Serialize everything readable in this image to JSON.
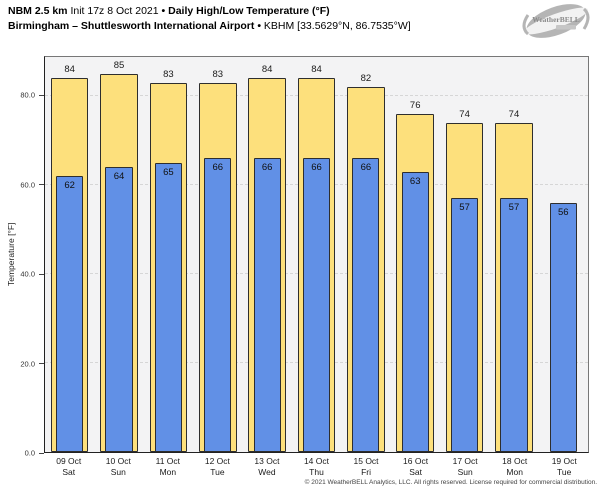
{
  "header": {
    "model": "NBM 2.5 km",
    "init": "Init 17z 8 Oct 2021",
    "sep": "•",
    "product": "Daily High/Low Temperature (°F)",
    "station_name": "Birmingham – Shuttlesworth International Airport",
    "station_id": "KBHM [33.5629°N, 86.7535°W]"
  },
  "logo": {
    "text": "WeatherBELL"
  },
  "footer": {
    "copyright": "© 2021 WeatherBELL Analytics, LLC. All rights reserved. License required for commercial distribution."
  },
  "colors": {
    "high_bar": "#fde07c",
    "low_bar": "#6190e6",
    "bar_edge": "#2e2e2e",
    "plot_background": "#f3f3f4",
    "gridline": "#d6d6d6"
  },
  "chart_data": {
    "type": "bar",
    "title": "NBM 2.5 km Daily High/Low Temperature (°F) — Birmingham (KBHM)",
    "xlabel": "",
    "ylabel": "Temperature [°F]",
    "ylim": [
      0,
      88.8
    ],
    "yticks": [
      0,
      20,
      40,
      60,
      80
    ],
    "ytick_labels": [
      "0.0",
      "20.0",
      "40.0",
      "60.0",
      "80.0"
    ],
    "grid": "horizontal-dashed",
    "legend_position": "none",
    "categories": [
      {
        "date": "09 Oct",
        "day": "Sat"
      },
      {
        "date": "10 Oct",
        "day": "Sun"
      },
      {
        "date": "11 Oct",
        "day": "Mon"
      },
      {
        "date": "12 Oct",
        "day": "Tue"
      },
      {
        "date": "13 Oct",
        "day": "Wed"
      },
      {
        "date": "14 Oct",
        "day": "Thu"
      },
      {
        "date": "15 Oct",
        "day": "Fri"
      },
      {
        "date": "16 Oct",
        "day": "Sat"
      },
      {
        "date": "17 Oct",
        "day": "Sun"
      },
      {
        "date": "18 Oct",
        "day": "Mon"
      },
      {
        "date": "19 Oct",
        "day": "Tue"
      }
    ],
    "series": [
      {
        "name": "High",
        "color": "#fde07c",
        "values": [
          84,
          85,
          83,
          83,
          84,
          84,
          82,
          76,
          74,
          74,
          null
        ]
      },
      {
        "name": "Low",
        "color": "#6190e6",
        "values": [
          62,
          64,
          65,
          66,
          66,
          66,
          66,
          63,
          57,
          57,
          56
        ]
      }
    ]
  }
}
